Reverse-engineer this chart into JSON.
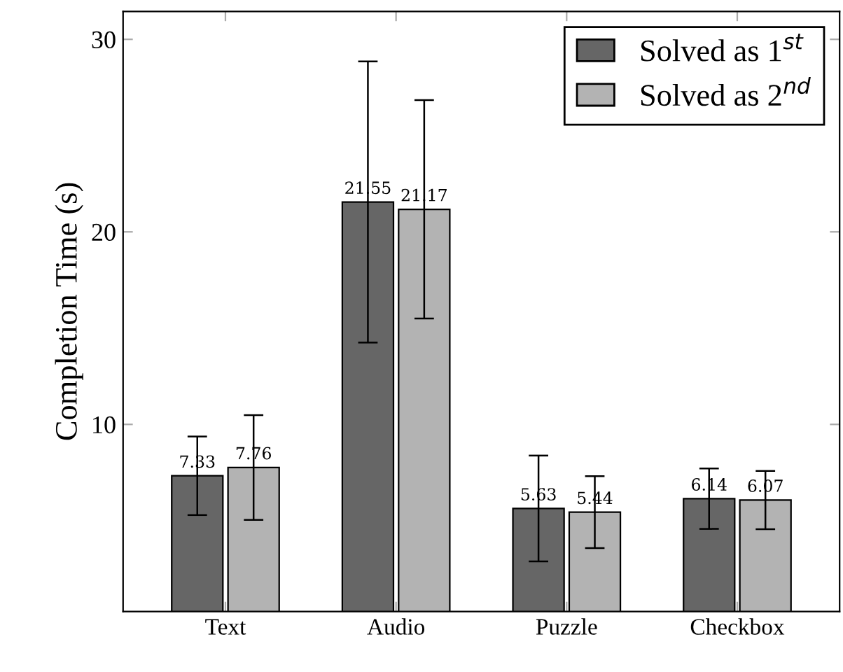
{
  "chart_data": {
    "type": "bar",
    "ylabel": "Completion Time (s)",
    "categories": [
      "Text",
      "Audio",
      "Puzzle",
      "Checkbox"
    ],
    "series": [
      {
        "name": "Solved as 1$^{st}$",
        "color": "#666666",
        "values": [
          7.33,
          21.55,
          5.63,
          6.14
        ],
        "errors": [
          2.04,
          7.3,
          2.75,
          1.57
        ]
      },
      {
        "name": "Solved as 2$^{nd}$",
        "color": "#b3b3b3",
        "values": [
          7.76,
          21.17,
          5.44,
          6.07
        ],
        "errors": [
          2.72,
          5.67,
          1.87,
          1.51
        ]
      }
    ],
    "ylim": [
      0.28,
      31.45
    ],
    "yticks": [
      10,
      20,
      30
    ],
    "data_labels": true,
    "legend": "top right",
    "grid": false
  }
}
